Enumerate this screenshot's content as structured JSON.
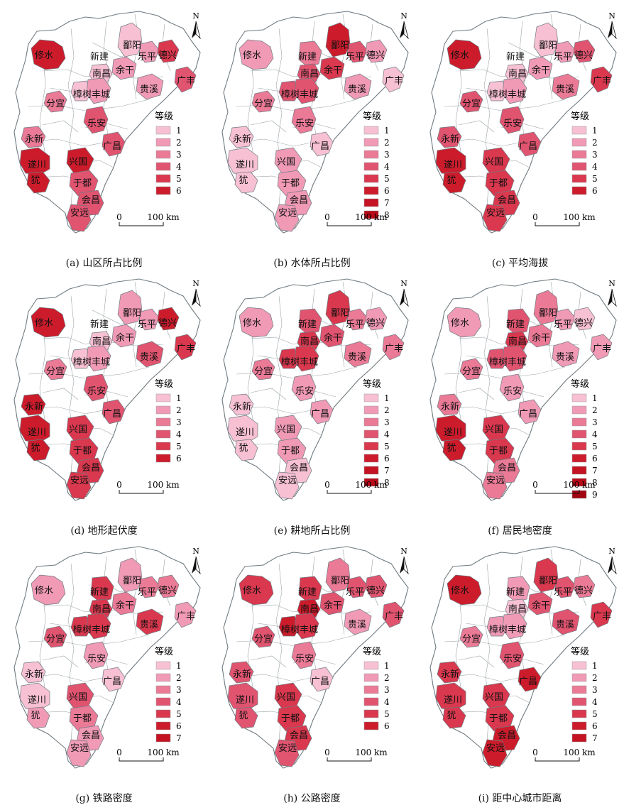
{
  "north_label": "N",
  "legend_title": "等级",
  "scalebar": {
    "zero": "0",
    "label": "100 km"
  },
  "place_names": [
    "修水",
    "新建",
    "鄱阳",
    "乐平",
    "德兴",
    "南昌",
    "余干",
    "广丰",
    "樟树",
    "丰城",
    "贵溪",
    "分宜",
    "乐安",
    "永新",
    "广昌",
    "遂川",
    "兴国",
    "犹",
    "于都",
    "会昌",
    "安远"
  ],
  "colors": {
    "1": "#f7c0d3",
    "2": "#f09ab6",
    "3": "#ea7a96",
    "4": "#e05470",
    "5": "#d9384e",
    "6": "#cc1c2c",
    "7": "#c41424",
    "8": "#b50a18",
    "9": "#a10510",
    "white": "#ffffff",
    "border": "#6f7a80"
  },
  "panels": [
    {
      "caption": "(a) 山区所占比例",
      "levels": [
        "1",
        "2",
        "3",
        "4",
        "5",
        "6"
      ],
      "fill": {
        "修水": 6,
        "鄱阳": 1,
        "乐平": 2,
        "德兴": 5,
        "广丰": 4,
        "余干": 2,
        "南昌": 1,
        "樟树": 1,
        "丰城": 2,
        "贵溪": 2,
        "分宜": 3,
        "乐安": 4,
        "广昌": 4,
        "永新": 3,
        "遂川": 6,
        "犹": 6,
        "兴国": 6,
        "于都": 4,
        "会昌": 4,
        "安远": 4
      }
    },
    {
      "caption": "(b) 水体所占比例",
      "levels": [
        "1",
        "2",
        "3",
        "4",
        "5",
        "6",
        "7",
        "8"
      ],
      "fill": {
        "修水": 2,
        "鄱阳": 6,
        "新建": 3,
        "南昌": 4,
        "余干": 5,
        "乐平": 4,
        "德兴": 2,
        "广丰": 1,
        "樟树": 4,
        "丰城": 4,
        "贵溪": 2,
        "分宜": 3,
        "乐安": 3,
        "广昌": 1,
        "永新": 1,
        "遂川": 1,
        "犹": 1,
        "兴国": 2,
        "于都": 2,
        "会昌": 2,
        "安远": 2
      }
    },
    {
      "caption": "(c) 平均海拔",
      "levels": [
        "1",
        "2",
        "3",
        "4",
        "5",
        "6"
      ],
      "fill": {
        "修水": 6,
        "鄱阳": 1,
        "乐平": 2,
        "德兴": 4,
        "广丰": 5,
        "南昌": 1,
        "余干": 2,
        "贵溪": 3,
        "樟树": 1,
        "丰城": 2,
        "分宜": 4,
        "乐安": 4,
        "广昌": 4,
        "永新": 4,
        "遂川": 6,
        "犹": 6,
        "兴国": 5,
        "于都": 5,
        "会昌": 5,
        "安远": 5
      }
    },
    {
      "caption": "(d) 地形起伏度",
      "levels": [
        "1",
        "2",
        "3",
        "4",
        "5",
        "6"
      ],
      "fill": {
        "修水": 6,
        "鄱阳": 2,
        "乐平": 2,
        "德兴": 6,
        "广丰": 5,
        "南昌": 1,
        "余干": 2,
        "贵溪": 4,
        "樟树": 1,
        "丰城": 2,
        "分宜": 3,
        "乐安": 4,
        "广昌": 4,
        "永新": 6,
        "遂川": 6,
        "犹": 6,
        "兴国": 5,
        "于都": 5,
        "会昌": 5,
        "安远": 5
      }
    },
    {
      "caption": "(e) 耕地所占比例",
      "levels": [
        "1",
        "2",
        "3",
        "4",
        "5",
        "6",
        "7",
        "8"
      ],
      "fill": {
        "修水": 2,
        "鄱阳": 5,
        "新建": 4,
        "南昌": 5,
        "余干": 4,
        "乐平": 3,
        "德兴": 2,
        "广丰": 3,
        "樟树": 5,
        "丰城": 5,
        "贵溪": 3,
        "分宜": 3,
        "乐安": 2,
        "广昌": 2,
        "永新": 1,
        "遂川": 1,
        "犹": 1,
        "兴国": 2,
        "于都": 2,
        "会昌": 1,
        "安远": 1
      }
    },
    {
      "caption": "(f) 居民地密度",
      "levels": [
        "1",
        "2",
        "3",
        "4",
        "5",
        "6",
        "7",
        "8",
        "9"
      ],
      "fill": {
        "修水": 2,
        "鄱阳": 3,
        "新建": 4,
        "南昌": 5,
        "余干": 3,
        "乐平": 2,
        "德兴": 1,
        "广丰": 2,
        "樟树": 4,
        "丰城": 4,
        "贵溪": 2,
        "分宜": 3,
        "乐安": 2,
        "广昌": 2,
        "永新": 3,
        "遂川": 6,
        "犹": 6,
        "兴国": 5,
        "于都": 5,
        "会昌": 3,
        "安远": 3
      }
    },
    {
      "caption": "(g) 铁路密度",
      "levels": [
        "1",
        "2",
        "3",
        "4",
        "5",
        "6",
        "7"
      ],
      "fill": {
        "修水": 2,
        "鄱阳": 2,
        "新建": 5,
        "南昌": 5,
        "余干": 3,
        "乐平": 3,
        "德兴": 3,
        "广丰": 2,
        "樟树": 5,
        "丰城": 5,
        "贵溪": 5,
        "分宜": 4,
        "乐安": 2,
        "广昌": 1,
        "永新": 1,
        "遂川": 1,
        "犹": 2,
        "兴国": 4,
        "于都": 3,
        "会昌": 2,
        "安远": 2
      }
    },
    {
      "caption": "(h) 公路密度",
      "levels": [
        "1",
        "2",
        "3",
        "4",
        "5",
        "6"
      ],
      "fill": {
        "修水": 5,
        "鄱阳": 3,
        "新建": 5,
        "南昌": 6,
        "余干": 4,
        "乐平": 4,
        "德兴": 4,
        "广丰": 4,
        "樟树": 6,
        "丰城": 5,
        "贵溪": 2,
        "分宜": 4,
        "乐安": 3,
        "广昌": 1,
        "永新": 4,
        "遂川": 4,
        "犹": 4,
        "兴国": 5,
        "于都": 5,
        "会昌": 5,
        "安远": 4
      }
    },
    {
      "caption": "(i) 距中心城市距离",
      "levels": [
        "1",
        "2",
        "3",
        "4",
        "5",
        "6",
        "7"
      ],
      "fill": {
        "修水": 6,
        "鄱阳": 5,
        "新建": 2,
        "南昌": 1,
        "余干": 4,
        "乐平": 4,
        "德兴": 3,
        "广丰": 5,
        "樟树": 2,
        "丰城": 2,
        "贵溪": 4,
        "分宜": 3,
        "乐安": 4,
        "广昌": 6,
        "永新": 5,
        "遂川": 5,
        "犹": 5,
        "兴国": 5,
        "于都": 5,
        "会昌": 6,
        "安远": 6
      }
    }
  ]
}
